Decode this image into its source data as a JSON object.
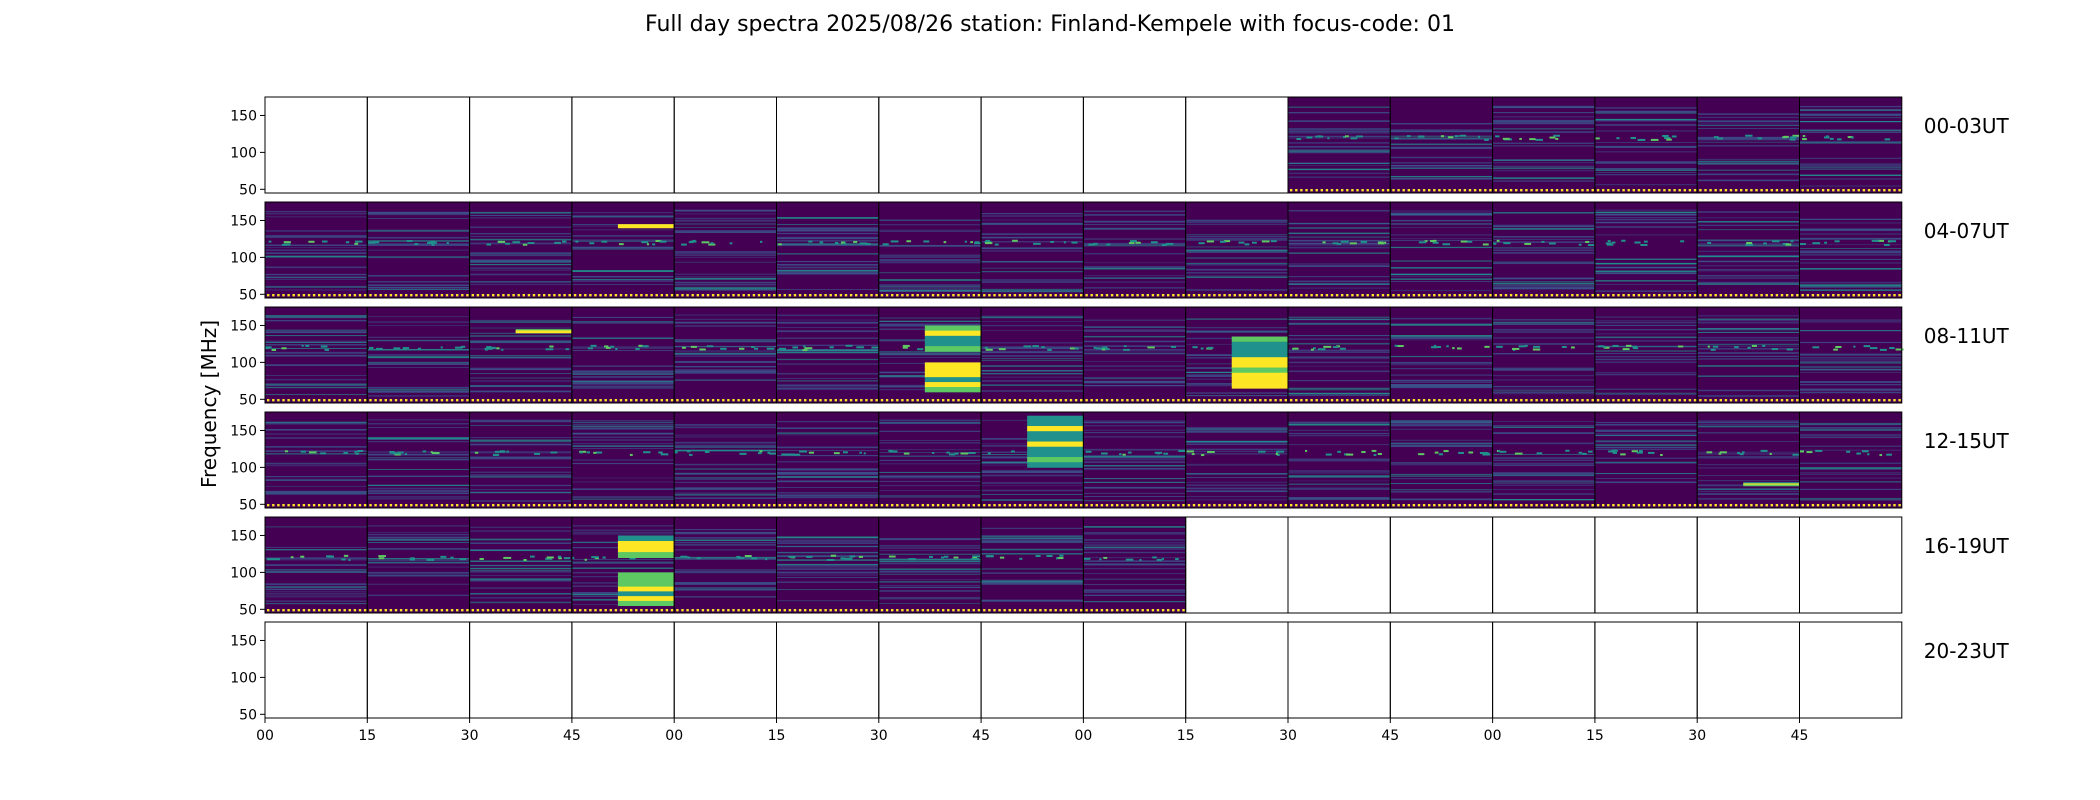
{
  "chart_data": {
    "type": "heatmap",
    "title": "Full day spectra 2025/08/26 station: Finland-Kempele with focus-code: 01",
    "ylabel": "Frequency [MHz]",
    "xlabel": "",
    "colormap": "viridis",
    "ytick_values": [
      50,
      100,
      150
    ],
    "ytick_labels": [
      "50",
      "100",
      "150"
    ],
    "ylim": [
      45,
      175
    ],
    "xtick_labels": [
      "00",
      "15",
      "30",
      "45",
      "00",
      "15",
      "30",
      "45",
      "00",
      "15",
      "30",
      "45",
      "00",
      "15",
      "30",
      "45"
    ],
    "columns_per_row": 16,
    "minutes_per_panel": 15,
    "rows": [
      {
        "label": "00-03UT",
        "panels": [
          0,
          0,
          0,
          0,
          0,
          0,
          0,
          0,
          0,
          0,
          1,
          1,
          1,
          1,
          1,
          1
        ]
      },
      {
        "label": "04-07UT",
        "panels": [
          1,
          1,
          1,
          1,
          1,
          1,
          1,
          1,
          1,
          1,
          1,
          1,
          1,
          1,
          1,
          1
        ]
      },
      {
        "label": "08-11UT",
        "panels": [
          1,
          1,
          1,
          1,
          1,
          1,
          1,
          1,
          1,
          1,
          1,
          1,
          1,
          1,
          1,
          1
        ]
      },
      {
        "label": "12-15UT",
        "panels": [
          1,
          1,
          1,
          1,
          1,
          1,
          1,
          1,
          1,
          1,
          1,
          1,
          1,
          1,
          1,
          1
        ]
      },
      {
        "label": "16-19UT",
        "panels": [
          1,
          1,
          1,
          1,
          1,
          1,
          1,
          1,
          1,
          0,
          0,
          0,
          0,
          0,
          0,
          0
        ]
      },
      {
        "label": "20-23UT",
        "panels": [
          0,
          0,
          0,
          0,
          0,
          0,
          0,
          0,
          0,
          0,
          0,
          0,
          0,
          0,
          0,
          0
        ]
      }
    ],
    "highlights": [
      {
        "row": 2,
        "panel": 6,
        "freq_bands": [
          [
            115,
            150
          ],
          [
            60,
            100
          ]
        ]
      },
      {
        "row": 4,
        "panel": 3,
        "freq_bands": [
          [
            120,
            150
          ],
          [
            55,
            100
          ]
        ]
      },
      {
        "row": 3,
        "panel": 7,
        "freq_bands": [
          [
            100,
            170
          ]
        ]
      },
      {
        "row": 2,
        "panel": 2,
        "freq_bands": [
          [
            140,
            145
          ]
        ]
      },
      {
        "row": 1,
        "panel": 3,
        "freq_bands": [
          [
            140,
            145
          ]
        ]
      },
      {
        "row": 2,
        "panel": 9,
        "freq_bands": [
          [
            65,
            135
          ]
        ]
      },
      {
        "row": 3,
        "panel": 14,
        "freq_bands": [
          [
            75,
            80
          ]
        ]
      }
    ],
    "grid": false
  },
  "colors": {
    "background": "#440154",
    "band_low": "#3b528b",
    "band_mid": "#21918c",
    "band_high": "#5ec962",
    "band_peak": "#fde725"
  }
}
